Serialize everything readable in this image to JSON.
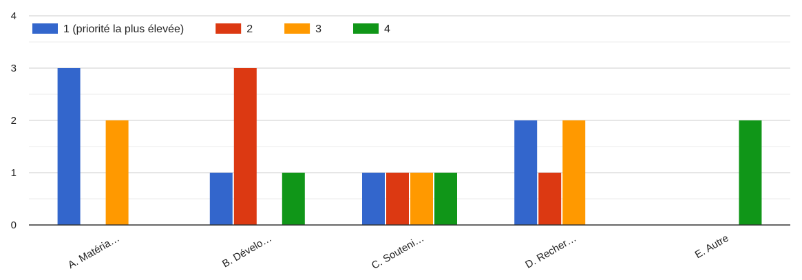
{
  "chart_data": {
    "type": "bar",
    "categories": [
      "A. Matéria…",
      "B. Dévelo…",
      "C. Souteni…",
      "D. Recher…",
      "E. Autre"
    ],
    "series": [
      {
        "name": "1 (priorité la plus élevée)",
        "color": "#3366cc",
        "values": [
          3,
          1,
          1,
          2,
          0
        ]
      },
      {
        "name": "2",
        "color": "#dc3912",
        "values": [
          0,
          3,
          1,
          1,
          0
        ]
      },
      {
        "name": "3",
        "color": "#ff9900",
        "values": [
          2,
          0,
          1,
          2,
          0
        ]
      },
      {
        "name": "4",
        "color": "#109618",
        "values": [
          0,
          1,
          1,
          0,
          2
        ]
      }
    ],
    "ylim": [
      0,
      4
    ],
    "yticks": [
      "0",
      "1",
      "2",
      "3",
      "4"
    ],
    "grid": true,
    "legend_position": "top-left"
  }
}
